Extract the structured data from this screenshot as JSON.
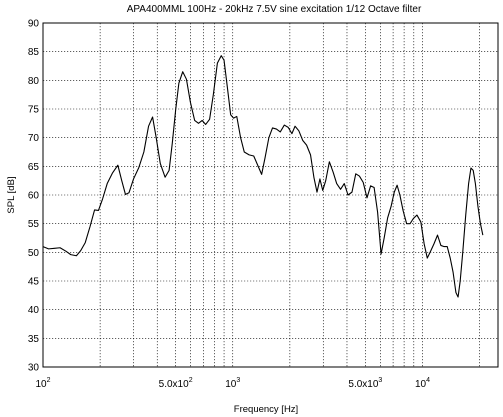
{
  "chart_data": {
    "type": "line",
    "title": "APA400MML 100Hz - 20kHz 7.5V sine excitation 1/12 Octave filter",
    "xlabel": "Frequency [Hz]",
    "ylabel": "SPL [dB]",
    "x_scale": "log",
    "xlim": [
      100,
      25000
    ],
    "ylim": [
      30,
      90
    ],
    "grid": true,
    "line_color": "#000000",
    "y_ticks": [
      "30",
      "35",
      "40",
      "45",
      "50",
      "55",
      "60",
      "65",
      "70",
      "75",
      "80",
      "85",
      "90"
    ],
    "x_ticks": [
      {
        "value": 100,
        "base": "10",
        "exp": "2",
        "mant": ""
      },
      {
        "value": 500,
        "base": "10",
        "exp": "2",
        "mant": "5.0x"
      },
      {
        "value": 1000,
        "base": "10",
        "exp": "3",
        "mant": ""
      },
      {
        "value": 5000,
        "base": "10",
        "exp": "3",
        "mant": "5.0x"
      },
      {
        "value": 10000,
        "base": "10",
        "exp": "4",
        "mant": ""
      }
    ],
    "series": [
      {
        "points": [
          [
            100,
            51
          ],
          [
            107,
            50.6
          ],
          [
            115,
            50.7
          ],
          [
            123,
            50.8
          ],
          [
            132,
            50.2
          ],
          [
            140,
            49.6
          ],
          [
            150,
            49.4
          ],
          [
            158,
            50.3
          ],
          [
            167,
            51.7
          ],
          [
            177,
            54.5
          ],
          [
            187,
            57.4
          ],
          [
            196,
            57.3
          ],
          [
            206,
            59.3
          ],
          [
            218,
            62
          ],
          [
            232,
            63.8
          ],
          [
            248,
            65.2
          ],
          [
            260,
            62.5
          ],
          [
            272,
            60.1
          ],
          [
            284,
            60.4
          ],
          [
            300,
            62.8
          ],
          [
            320,
            64.8
          ],
          [
            340,
            67.5
          ],
          [
            360,
            72
          ],
          [
            378,
            73.6
          ],
          [
            395,
            70
          ],
          [
            415,
            65.5
          ],
          [
            440,
            63.1
          ],
          [
            462,
            64.3
          ],
          [
            480,
            69
          ],
          [
            500,
            74.8
          ],
          [
            520,
            79.5
          ],
          [
            545,
            81.5
          ],
          [
            570,
            80.2
          ],
          [
            598,
            76.2
          ],
          [
            630,
            73
          ],
          [
            660,
            72.5
          ],
          [
            690,
            73
          ],
          [
            720,
            72.3
          ],
          [
            755,
            73.2
          ],
          [
            790,
            77.5
          ],
          [
            830,
            83
          ],
          [
            870,
            84.3
          ],
          [
            900,
            83.5
          ],
          [
            935,
            79
          ],
          [
            975,
            74
          ],
          [
            1010,
            73.4
          ],
          [
            1050,
            73.7
          ],
          [
            1100,
            70
          ],
          [
            1150,
            67.5
          ],
          [
            1220,
            67
          ],
          [
            1290,
            66.8
          ],
          [
            1370,
            64.8
          ],
          [
            1420,
            63.6
          ],
          [
            1480,
            66.5
          ],
          [
            1550,
            70
          ],
          [
            1620,
            71.7
          ],
          [
            1700,
            71.5
          ],
          [
            1780,
            71
          ],
          [
            1870,
            72.2
          ],
          [
            1960,
            71.8
          ],
          [
            2050,
            70.7
          ],
          [
            2130,
            72
          ],
          [
            2230,
            71.2
          ],
          [
            2340,
            69.5
          ],
          [
            2450,
            68.7
          ],
          [
            2570,
            67
          ],
          [
            2680,
            63
          ],
          [
            2780,
            60.5
          ],
          [
            2880,
            62.8
          ],
          [
            2980,
            60.8
          ],
          [
            3090,
            62.5
          ],
          [
            3230,
            65.8
          ],
          [
            3380,
            64
          ],
          [
            3530,
            62
          ],
          [
            3700,
            61
          ],
          [
            3870,
            62
          ],
          [
            4050,
            60
          ],
          [
            4250,
            60.5
          ],
          [
            4450,
            63.7
          ],
          [
            4650,
            63.3
          ],
          [
            4870,
            62.2
          ],
          [
            5100,
            59.5
          ],
          [
            5330,
            61.6
          ],
          [
            5560,
            61.3
          ],
          [
            5800,
            57
          ],
          [
            6050,
            49.7
          ],
          [
            6280,
            52.5
          ],
          [
            6550,
            56
          ],
          [
            6830,
            58
          ],
          [
            7100,
            60.5
          ],
          [
            7350,
            61.7
          ],
          [
            7600,
            60
          ],
          [
            7900,
            57.3
          ],
          [
            8250,
            55
          ],
          [
            8600,
            55
          ],
          [
            8950,
            55.9
          ],
          [
            9350,
            56.5
          ],
          [
            9800,
            55.3
          ],
          [
            10200,
            51.5
          ],
          [
            10600,
            49
          ],
          [
            11000,
            50.1
          ],
          [
            11500,
            51.5
          ],
          [
            12000,
            53
          ],
          [
            12500,
            51.2
          ],
          [
            13000,
            51
          ],
          [
            13500,
            51
          ],
          [
            14000,
            49
          ],
          [
            14500,
            46.5
          ],
          [
            15000,
            43
          ],
          [
            15400,
            42.2
          ],
          [
            15800,
            45
          ],
          [
            16300,
            50
          ],
          [
            16900,
            56.5
          ],
          [
            17500,
            62
          ],
          [
            18000,
            64.7
          ],
          [
            18500,
            64.3
          ],
          [
            19000,
            62
          ],
          [
            19600,
            58
          ],
          [
            20200,
            55
          ],
          [
            20800,
            53
          ]
        ]
      }
    ]
  }
}
